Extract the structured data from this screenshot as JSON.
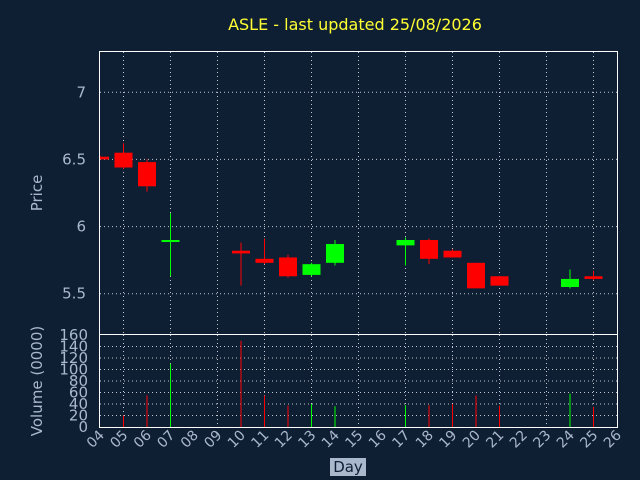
{
  "chart_data": {
    "type": "candlestick",
    "title": "ASLE - last updated 25/08/2026",
    "xlabel": "Day",
    "price": {
      "ylabel": "Price",
      "ylim": [
        5.2,
        7.3
      ],
      "yticks": [
        5.5,
        6,
        6.5,
        7
      ]
    },
    "volume": {
      "ylabel": "Volume (0000)",
      "ylim": [
        0,
        160
      ],
      "yticks": [
        0,
        20,
        40,
        60,
        80,
        100,
        120,
        140,
        160
      ]
    },
    "xticks": [
      "04",
      "05",
      "06",
      "07",
      "08",
      "09",
      "10",
      "11",
      "12",
      "13",
      "14",
      "15",
      "16",
      "17",
      "18",
      "19",
      "20",
      "21",
      "22",
      "23",
      "24",
      "25",
      "26"
    ],
    "grid": true,
    "up_color": "#00ff00",
    "down_color": "#ff0000",
    "candles": [
      {
        "day": 4,
        "open": 6.52,
        "high": 6.53,
        "low": 6.5,
        "close": 6.5,
        "volume": 0
      },
      {
        "day": 5,
        "open": 6.55,
        "high": 6.62,
        "low": 6.43,
        "close": 6.44,
        "volume": 20
      },
      {
        "day": 6,
        "open": 6.48,
        "high": 6.5,
        "low": 6.26,
        "close": 6.3,
        "volume": 55
      },
      {
        "day": 7,
        "open": 5.9,
        "high": 6.1,
        "low": 5.63,
        "close": 5.9,
        "volume": 110
      },
      {
        "day": 10,
        "open": 5.82,
        "high": 5.88,
        "low": 5.56,
        "close": 5.8,
        "volume": 150
      },
      {
        "day": 11,
        "open": 5.76,
        "high": 5.91,
        "low": 5.72,
        "close": 5.73,
        "volume": 55
      },
      {
        "day": 12,
        "open": 5.77,
        "high": 5.79,
        "low": 5.62,
        "close": 5.63,
        "volume": 37
      },
      {
        "day": 13,
        "open": 5.64,
        "high": 5.73,
        "low": 5.63,
        "close": 5.72,
        "volume": 40
      },
      {
        "day": 14,
        "open": 5.73,
        "high": 5.9,
        "low": 5.71,
        "close": 5.87,
        "volume": 36
      },
      {
        "day": 17,
        "open": 5.86,
        "high": 5.92,
        "low": 5.71,
        "close": 5.9,
        "volume": 38
      },
      {
        "day": 18,
        "open": 5.9,
        "high": 5.91,
        "low": 5.72,
        "close": 5.76,
        "volume": 38
      },
      {
        "day": 19,
        "open": 5.82,
        "high": 5.83,
        "low": 5.77,
        "close": 5.77,
        "volume": 40
      },
      {
        "day": 20,
        "open": 5.73,
        "high": 5.73,
        "low": 5.54,
        "close": 5.54,
        "volume": 55
      },
      {
        "day": 21,
        "open": 5.63,
        "high": 5.63,
        "low": 5.56,
        "close": 5.56,
        "volume": 37
      },
      {
        "day": 24,
        "open": 5.55,
        "high": 5.68,
        "low": 5.54,
        "close": 5.61,
        "volume": 58
      },
      {
        "day": 25,
        "open": 5.63,
        "high": 5.67,
        "low": 5.6,
        "close": 5.61,
        "volume": 35
      }
    ]
  }
}
